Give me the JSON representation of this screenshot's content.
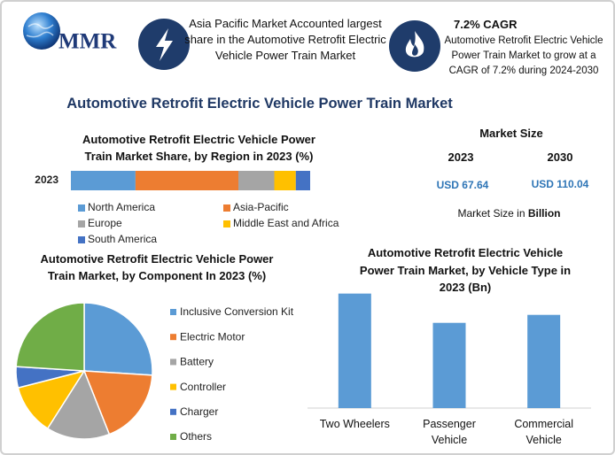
{
  "header": {
    "logo": "MMR",
    "info_1": "Asia Pacific Market Accounted largest share in the Automotive Retrofit Electric Vehicle Power Train Market",
    "info_2_title": "7.2% CAGR",
    "info_2_text": "Automotive Retrofit Electric Vehicle Power Train Market to grow at a CAGR of 7.2% during 2024-2030"
  },
  "title": "Automotive Retrofit Electric Vehicle Power Train Market",
  "market_size": {
    "title": "Market Size",
    "years": [
      "2023",
      "2030"
    ],
    "values": [
      "USD 67.64",
      "USD 110.04"
    ],
    "note": "Market Size in",
    "note_unit": "Billion"
  },
  "chart_data": [
    {
      "type": "stacked_bar_horizontal",
      "title": "Automotive Retrofit Electric Vehicle Power Train Market Share, by Region in 2023 (%)",
      "categories": [
        "2023"
      ],
      "xlim": [
        0,
        100
      ],
      "series": [
        {
          "name": "North America",
          "color": "#5b9bd5",
          "values": [
            27
          ]
        },
        {
          "name": "Asia-Pacific",
          "color": "#ed7d31",
          "values": [
            43
          ]
        },
        {
          "name": "Europe",
          "color": "#a5a5a5",
          "values": [
            15
          ]
        },
        {
          "name": "Middle East and Africa",
          "color": "#ffc000",
          "values": [
            9
          ]
        },
        {
          "name": "South America",
          "color": "#4472c4",
          "values": [
            6
          ]
        }
      ]
    },
    {
      "type": "pie",
      "title": "Automotive Retrofit Electric Vehicle Power Train Market, by Component In 2023 (%)",
      "categories": [
        "Inclusive Conversion Kit",
        "Electric Motor",
        "Battery",
        "Controller",
        "Charger",
        "Others"
      ],
      "values": [
        26,
        18,
        15,
        12,
        5,
        24
      ],
      "colors": [
        "#5b9bd5",
        "#ed7d31",
        "#a5a5a5",
        "#ffc000",
        "#4472c4",
        "#70ad47"
      ]
    },
    {
      "type": "bar",
      "title": "Automotive Retrofit Electric Vehicle Power Train Market, by Vehicle Type in 2023 (Bn)",
      "categories": [
        "Two Wheelers",
        "Passenger Vehicle",
        "Commercial Vehicle"
      ],
      "values": [
        26.44,
        19.68,
        21.52
      ],
      "color": "#5b9bd5",
      "ylim": [
        0,
        28
      ]
    }
  ]
}
